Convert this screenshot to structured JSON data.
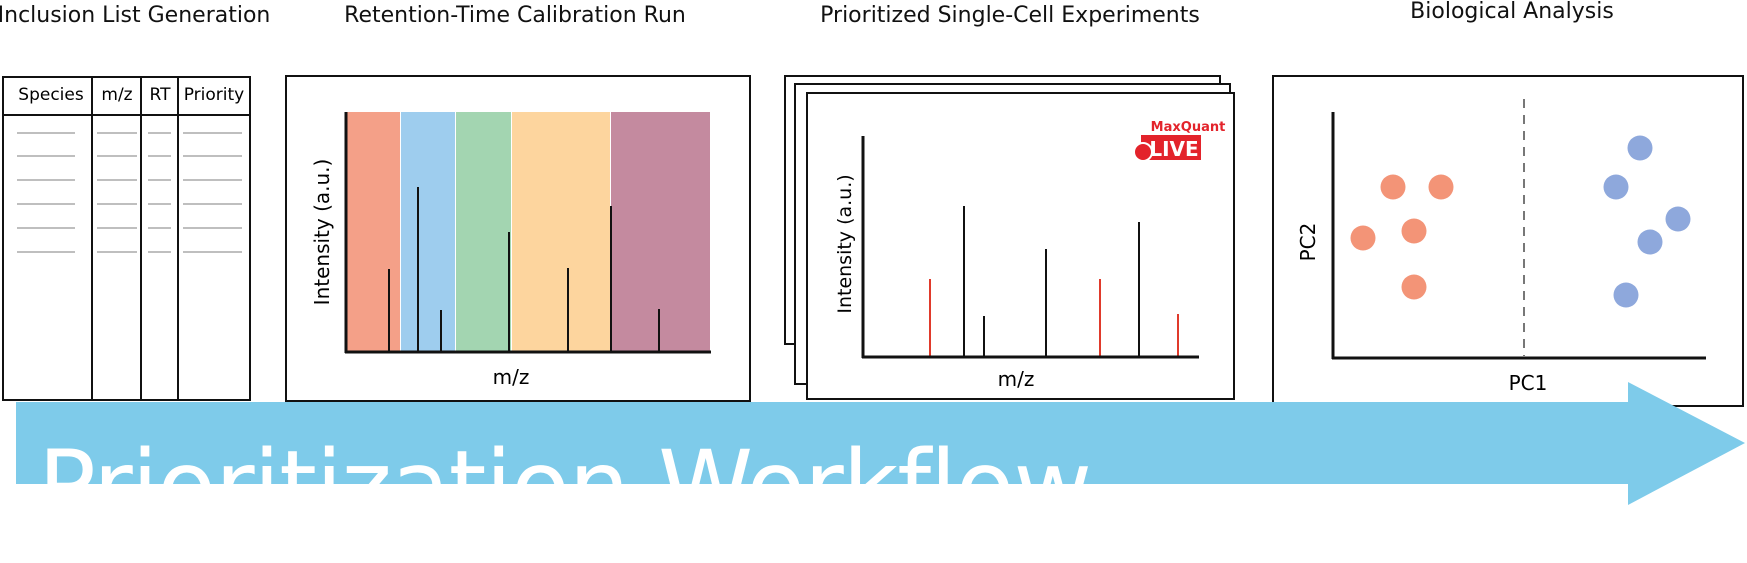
{
  "titles": {
    "inclusion": "Inclusion List Generation",
    "calibration": "Retention-Time Calibration Run",
    "single_cell": "Prioritized Single-Cell Experiments",
    "biological": "Biological Analysis"
  },
  "table": {
    "headers": [
      "Species",
      "m/z",
      "RT",
      "Priority"
    ]
  },
  "calibration_plot": {
    "ylabel": "Intensity (a.u.)",
    "xlabel": "m/z",
    "band_colors": [
      "#f4a088",
      "#9ecdee",
      "#a3d5b1",
      "#fdd59e",
      "#c48a9f"
    ]
  },
  "single_cell_plot": {
    "ylabel": "Intensity (a.u.)",
    "xlabel": "m/z",
    "logo_top": "MaxQuant",
    "logo_bottom": "LIVE",
    "logo_color": "#e3232b",
    "peak_color_highlight": "#e03a2b"
  },
  "pca_plot": {
    "xlabel": "PC1",
    "ylabel": "PC2",
    "group_colors": [
      "#f39477",
      "#8ea8dc"
    ]
  },
  "banner": {
    "text": "Prioritization Workflow",
    "color": "#7ecbea"
  }
}
